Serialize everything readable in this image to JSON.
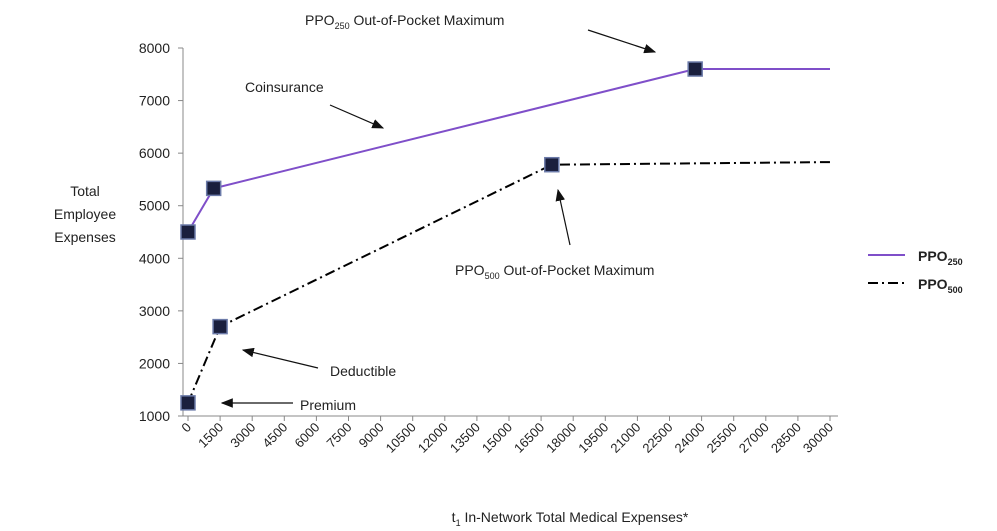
{
  "chart_data": {
    "type": "line",
    "ylabel": [
      "Total",
      "Employee",
      "Expenses"
    ],
    "xlabel": "t1 In-Network Total Medical Expenses*",
    "xlim": [
      0,
      30000
    ],
    "xticks": [
      0,
      1500,
      3000,
      4500,
      6000,
      7500,
      9000,
      10500,
      12000,
      13500,
      15000,
      16500,
      18000,
      19500,
      21000,
      22500,
      24000,
      25500,
      27000,
      28500,
      30000
    ],
    "ylim": [
      1000,
      8000
    ],
    "yticks": [
      1000,
      2000,
      3000,
      4000,
      5000,
      6000,
      7000,
      8000
    ],
    "legend": "right",
    "series": [
      {
        "name": "PPO250",
        "color": "#7f4fc9",
        "dash": "solid",
        "x": [
          0,
          1200,
          23700,
          30000
        ],
        "values": [
          4500,
          5330,
          7600,
          7600
        ]
      },
      {
        "name": "PPO500",
        "color": "#000000",
        "dash": "dashdot",
        "x": [
          0,
          1500,
          17000,
          30000
        ],
        "values": [
          1250,
          2700,
          5780,
          5830
        ]
      }
    ],
    "marker_color": "#1a1f3d",
    "annotations": [
      "PPO250 Out-of-Pocket Maximum",
      "Coinsurance",
      "PPO500 Out-of-Pocket Maximum",
      "Deductible",
      "Premium"
    ]
  }
}
